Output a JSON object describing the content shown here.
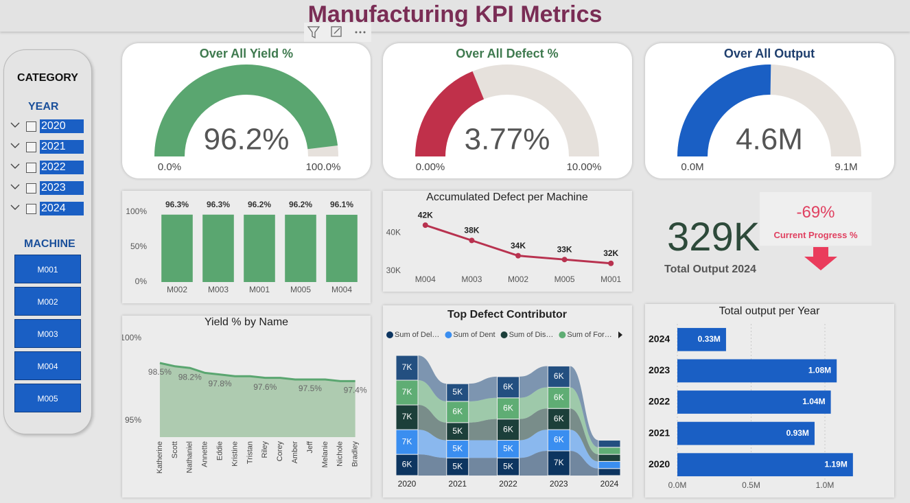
{
  "title": "Manufacturing KPI Metrics",
  "slicer": {
    "title": "CATEGORY",
    "year_label": "YEAR",
    "years": [
      "2020",
      "2021",
      "2022",
      "2023",
      "2024"
    ],
    "machine_label": "MACHINE",
    "machines": [
      "M001",
      "M002",
      "M003",
      "M004",
      "M005"
    ]
  },
  "card": {
    "value": "329K",
    "label": "Total Output 2024",
    "progress": "-69%",
    "progress_label": "Current Progress %"
  },
  "chart_data": [
    {
      "type": "gauge",
      "title": "Over All Yield %",
      "title_color": "#3f7a4f",
      "values": [
        96.2
      ],
      "value_labels": [
        "96.2%"
      ],
      "color": "#5aa670",
      "track_color": "#e6e1dc",
      "ylim": [
        0,
        100
      ],
      "yticks": [
        {
          "value": 0,
          "label": "0.0%"
        },
        {
          "value": 100,
          "label": "100.0%"
        }
      ]
    },
    {
      "type": "gauge",
      "title": "Over All Defect %",
      "title_color": "#3f7a4f",
      "values": [
        3.77
      ],
      "value_labels": [
        "3.77%"
      ],
      "color": "#c0304a",
      "track_color": "#e6e1dc",
      "ylim": [
        0,
        10
      ],
      "yticks": [
        {
          "value": 0,
          "label": "0.00%"
        },
        {
          "value": 10,
          "label": "10.00%"
        }
      ]
    },
    {
      "type": "gauge",
      "title": "Over All Output",
      "title_color": "#1f3f6e",
      "values": [
        4600000
      ],
      "value_labels": [
        "4.6M"
      ],
      "color": "#1a5fc4",
      "track_color": "#e6e1dc",
      "ylim": [
        0,
        9100000
      ],
      "yticks": [
        {
          "value": 0,
          "label": "0.0M"
        },
        {
          "value": 9100000,
          "label": "9.1M"
        }
      ]
    },
    {
      "type": "bar",
      "categories": [
        "M002",
        "M003",
        "M001",
        "M005",
        "M004"
      ],
      "values": [
        96.3,
        96.3,
        96.2,
        96.2,
        96.1
      ],
      "value_labels": [
        "96.3%",
        "96.3%",
        "96.2%",
        "96.2%",
        "96.1%"
      ],
      "color": "#5aa670",
      "ylim": [
        0,
        100
      ],
      "yticks": [
        {
          "value": 0,
          "label": "0%"
        },
        {
          "value": 50,
          "label": "50%"
        },
        {
          "value": 100,
          "label": "100%"
        }
      ]
    },
    {
      "type": "line",
      "title": "Accumulated Defect per Machine",
      "categories": [
        "M004",
        "M003",
        "M002",
        "M005",
        "M001"
      ],
      "values": [
        42000,
        38000,
        34000,
        33000,
        32000
      ],
      "value_labels": [
        "42K",
        "38K",
        "34K",
        "33K",
        "32K"
      ],
      "color": "#b8324f",
      "ylim": [
        28000,
        44000
      ],
      "yticks": [
        {
          "value": 30000,
          "label": "30K"
        },
        {
          "value": 40000,
          "label": "40K"
        }
      ]
    },
    {
      "type": "area",
      "title": "Yield % by Name",
      "categories": [
        "Katherine",
        "Scott",
        "Nathaniel",
        "Annette",
        "Eddie",
        "Kristine",
        "Tristan",
        "Riley",
        "Corey",
        "Amber",
        "Jeff",
        "Melanie",
        "Nichole",
        "Bradley"
      ],
      "values": [
        98.5,
        98.3,
        98.2,
        97.9,
        97.8,
        97.7,
        97.7,
        97.6,
        97.6,
        97.5,
        97.5,
        97.5,
        97.4,
        97.4
      ],
      "value_labels": [
        "98.5%",
        null,
        "98.2%",
        null,
        "97.8%",
        null,
        null,
        "97.6%",
        null,
        null,
        "97.5%",
        null,
        null,
        "97.4%"
      ],
      "color": "#5aa670",
      "fill_color": "#aecbb0",
      "ylim": [
        94,
        100
      ],
      "yticks": [
        {
          "value": 100,
          "label": "100%"
        },
        {
          "value": 95,
          "label": "95%"
        }
      ]
    },
    {
      "type": "ribbon",
      "title": "Top Defect Contributor",
      "categories": [
        "2020",
        "2021",
        "2022",
        "2023",
        "2024"
      ],
      "series": [
        {
          "name": "Sum of Del…",
          "color": "#0d3560",
          "values": [
            6000,
            5000,
            5000,
            7000,
            2000
          ],
          "value_labels": [
            "6K",
            "5K",
            "5K",
            "7K",
            null
          ]
        },
        {
          "name": "Sum of Dent",
          "color": "#3a8ef0",
          "values": [
            7000,
            5000,
            5000,
            6000,
            2000
          ],
          "value_labels": [
            "7K",
            "5K",
            "5K",
            "6K",
            null
          ]
        },
        {
          "name": "Sum of Dis…",
          "color": "#1c3f3a",
          "values": [
            7000,
            5000,
            6000,
            6000,
            2000
          ],
          "value_labels": [
            "7K",
            "5K",
            "6K",
            "6K",
            null
          ]
        },
        {
          "name": "Sum of For…",
          "color": "#5fad74",
          "values": [
            7000,
            6000,
            6000,
            6000,
            2000
          ],
          "value_labels": [
            "7K",
            "6K",
            "6K",
            "6K",
            null
          ]
        },
        {
          "color": "#234f80",
          "values": [
            7000,
            5000,
            6000,
            6000,
            2000
          ],
          "value_labels": [
            "7K",
            "5K",
            "6K",
            "6K",
            null
          ]
        }
      ]
    },
    {
      "type": "hbar",
      "title": "Total output per Year",
      "categories": [
        "2024",
        "2023",
        "2022",
        "2021",
        "2020"
      ],
      "values": [
        330000,
        1080000,
        1040000,
        930000,
        1190000
      ],
      "value_labels": [
        "0.33M",
        "1.08M",
        "1.04M",
        "0.93M",
        "1.19M"
      ],
      "color": "#1a5fc4",
      "xlim": [
        0,
        1400000
      ],
      "grid": true,
      "xticks": [
        {
          "value": 0,
          "label": "0.0M"
        },
        {
          "value": 500000,
          "label": "0.5M"
        },
        {
          "value": 1000000,
          "label": "1.0M"
        }
      ]
    }
  ]
}
